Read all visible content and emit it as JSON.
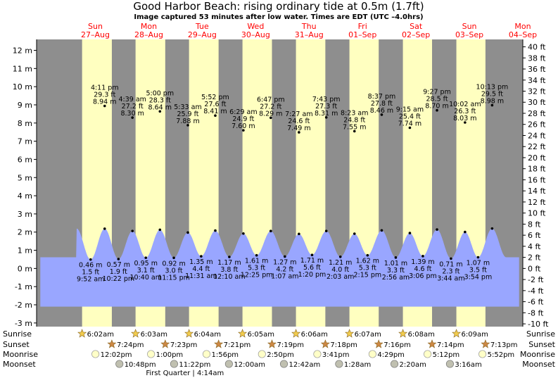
{
  "header": {
    "title": "Good Harbor Beach: rising  ordinary tide at 0.5m (1.7ft)",
    "subtitle": "Image captured 53 minutes after low water. Times are EDT (UTC –4.0hrs)"
  },
  "colors": {
    "night": "#8e8e8e",
    "day": "#ffffc0",
    "water": "#99a6ff",
    "date_label": "#ff0000",
    "sun_star": "#f2cc4d",
    "sunset_star": "#cc8844",
    "moonrise": "#ffffc8",
    "moonset": "#c0c0b0"
  },
  "days": [
    {
      "dow": "Sun",
      "date": "27–Aug"
    },
    {
      "dow": "Mon",
      "date": "28–Aug"
    },
    {
      "dow": "Tue",
      "date": "29–Aug"
    },
    {
      "dow": "Wed",
      "date": "30–Aug"
    },
    {
      "dow": "Thu",
      "date": "31–Aug"
    },
    {
      "dow": "Fri",
      "date": "01–Sep"
    },
    {
      "dow": "Sat",
      "date": "02–Sep"
    },
    {
      "dow": "Sun",
      "date": "03–Sep"
    },
    {
      "dow": "Mon",
      "date": "04–Sep"
    }
  ],
  "chart_data": {
    "type": "area",
    "left_axis": {
      "unit": "m",
      "ylim": [
        -3.2,
        12.6
      ],
      "ticks": [
        -3,
        -2,
        -1,
        0,
        1,
        2,
        3,
        4,
        5,
        6,
        7,
        8,
        9,
        10,
        11,
        12
      ]
    },
    "right_axis": {
      "unit": "ft",
      "ticks": [
        -10,
        -8,
        -6,
        -4,
        -2,
        0,
        2,
        4,
        6,
        8,
        10,
        12,
        14,
        16,
        18,
        20,
        22,
        24,
        26,
        28,
        30,
        32,
        34,
        36,
        38,
        40
      ]
    },
    "x_range_days": [
      -0.6,
      8.5
    ],
    "tides": [
      {
        "type": "low",
        "day": 0,
        "time": "9:52 am",
        "m": "0.46 m",
        "ft": "1.5 ft",
        "value": 0.46
      },
      {
        "type": "high",
        "day": 0,
        "time": "4:11 pm",
        "m": "8.94 m",
        "ft": "29.3 ft",
        "value": 8.94
      },
      {
        "type": "low",
        "day": 0,
        "time": "10:22 pm",
        "m": "0.57 m",
        "ft": "1.9 ft",
        "value": 0.57
      },
      {
        "type": "high",
        "day": 1,
        "time": "4:39 am",
        "m": "8.30 m",
        "ft": "27.2 ft",
        "value": 8.3
      },
      {
        "type": "low",
        "day": 1,
        "time": "10:40 am",
        "m": "0.95 m",
        "ft": "3.1 ft",
        "value": 0.95
      },
      {
        "type": "high",
        "day": 1,
        "time": "5:00 pm",
        "m": "8.64 m",
        "ft": "28.3 ft",
        "value": 8.64
      },
      {
        "type": "low",
        "day": 1,
        "time": "11:15 pm",
        "m": "0.92 m",
        "ft": "3.0 ft",
        "value": 0.92
      },
      {
        "type": "high",
        "day": 2,
        "time": "5:33 am",
        "m": "7.88 m",
        "ft": "25.9 ft",
        "value": 7.88
      },
      {
        "type": "low",
        "day": 2,
        "time": "11:31 am",
        "m": "1.35 m",
        "ft": "4.4 ft",
        "value": 1.35
      },
      {
        "type": "high",
        "day": 2,
        "time": "5:52 pm",
        "m": "8.41 m",
        "ft": "27.6 ft",
        "value": 8.41
      },
      {
        "type": "low",
        "day": 3,
        "time": "12:10 am",
        "m": "1.17 m",
        "ft": "3.8 ft",
        "value": 1.17
      },
      {
        "type": "high",
        "day": 3,
        "time": "6:29 am",
        "m": "7.60 m",
        "ft": "24.9 ft",
        "value": 7.6
      },
      {
        "type": "low",
        "day": 3,
        "time": "12:25 pm",
        "m": "1.61 m",
        "ft": "5.3 ft",
        "value": 1.61
      },
      {
        "type": "high",
        "day": 3,
        "time": "6:47 pm",
        "m": "8.29 m",
        "ft": "27.2 ft",
        "value": 8.29
      },
      {
        "type": "low",
        "day": 4,
        "time": "1:07 am",
        "m": "1.27 m",
        "ft": "4.2 ft",
        "value": 1.27
      },
      {
        "type": "high",
        "day": 4,
        "time": "7:27 am",
        "m": "7.49 m",
        "ft": "24.6 ft",
        "value": 7.49
      },
      {
        "type": "low",
        "day": 4,
        "time": "1:20 pm",
        "m": "1.71 m",
        "ft": "5.6 ft",
        "value": 1.71
      },
      {
        "type": "high",
        "day": 4,
        "time": "7:43 pm",
        "m": "8.31 m",
        "ft": "27.3 ft",
        "value": 8.31
      },
      {
        "type": "low",
        "day": 5,
        "time": "2:03 am",
        "m": "1.21 m",
        "ft": "4.0 ft",
        "value": 1.21
      },
      {
        "type": "high",
        "day": 5,
        "time": "8:23 am",
        "m": "7.55 m",
        "ft": "24.8 ft",
        "value": 7.55
      },
      {
        "type": "low",
        "day": 5,
        "time": "2:15 pm",
        "m": "1.62 m",
        "ft": "5.3 ft",
        "value": 1.62
      },
      {
        "type": "high",
        "day": 5,
        "time": "8:37 pm",
        "m": "8.46 m",
        "ft": "27.8 ft",
        "value": 8.46
      },
      {
        "type": "low",
        "day": 6,
        "time": "2:56 am",
        "m": "1.01 m",
        "ft": "3.3 ft",
        "value": 1.01
      },
      {
        "type": "high",
        "day": 6,
        "time": "9:15 am",
        "m": "7.74 m",
        "ft": "25.4 ft",
        "value": 7.74
      },
      {
        "type": "low",
        "day": 6,
        "time": "3:06 pm",
        "m": "1.39 m",
        "ft": "4.6 ft",
        "value": 1.39
      },
      {
        "type": "high",
        "day": 6,
        "time": "9:27 pm",
        "m": "8.70 m",
        "ft": "28.5 ft",
        "value": 8.7
      },
      {
        "type": "low",
        "day": 7,
        "time": "3:44 am",
        "m": "0.71 m",
        "ft": "2.3 ft",
        "value": 0.71
      },
      {
        "type": "high",
        "day": 7,
        "time": "10:02 am",
        "m": "8.03 m",
        "ft": "26.3 ft",
        "value": 8.03
      },
      {
        "type": "low",
        "day": 7,
        "time": "3:54 pm",
        "m": "1.07 m",
        "ft": "3.5 ft",
        "value": 1.07
      },
      {
        "type": "high",
        "day": 7,
        "time": "10:13 pm",
        "m": "8.98 m",
        "ft": "29.5 ft",
        "value": 8.98
      }
    ],
    "sun": [
      {
        "rise": "6:02am",
        "set": "7:24pm"
      },
      {
        "rise": "6:03am",
        "set": "7:23pm"
      },
      {
        "rise": "6:04am",
        "set": "7:21pm"
      },
      {
        "rise": "6:05am",
        "set": "7:19pm"
      },
      {
        "rise": "6:06am",
        "set": "7:18pm"
      },
      {
        "rise": "6:07am",
        "set": "7:16pm"
      },
      {
        "rise": "6:08am",
        "set": "7:14pm"
      },
      {
        "rise": "6:09am",
        "set": "7:13pm"
      }
    ],
    "moonrise": [
      {
        "day": 0,
        "time": "12:02pm"
      },
      {
        "day": 1,
        "time": "1:00pm"
      },
      {
        "day": 2,
        "time": "1:56pm"
      },
      {
        "day": 3,
        "time": "2:50pm"
      },
      {
        "day": 4,
        "time": "3:41pm"
      },
      {
        "day": 5,
        "time": "4:29pm"
      },
      {
        "day": 6,
        "time": "5:12pm"
      },
      {
        "day": 7,
        "time": "5:52pm"
      }
    ],
    "moonset": [
      {
        "day": 0,
        "time": "10:48pm"
      },
      {
        "day": 1,
        "time": "11:22pm"
      },
      {
        "day": 3,
        "time": "12:00am"
      },
      {
        "day": 4,
        "time": "12:42am"
      },
      {
        "day": 5,
        "time": "1:28am"
      },
      {
        "day": 6,
        "time": "2:20am"
      },
      {
        "day": 7,
        "time": "3:16am"
      }
    ],
    "row_labels": {
      "sunrise": "Sunrise",
      "sunset": "Sunset",
      "moonrise": "Moonrise",
      "moonset": "Moonset"
    },
    "moon_phase": {
      "day": 2,
      "time": "4:14am",
      "label": "First Quarter | 4:14am"
    }
  }
}
